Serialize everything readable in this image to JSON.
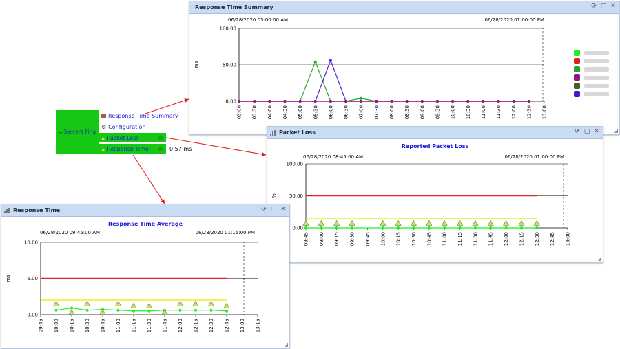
{
  "widget": {
    "label": "Servers Ping",
    "menu": [
      {
        "label": "Response Time Summary"
      },
      {
        "label": "Configuration"
      },
      {
        "label": "Packet Loss"
      },
      {
        "label": "Response Time"
      }
    ],
    "response_value": "0.57 ms"
  },
  "panels": {
    "summary": {
      "title": "Response Time Summary",
      "start": "06/28/2020 03:00:00 AM",
      "end": "06/28/2020 01:00:00 PM",
      "ylabel": "ms"
    },
    "packet": {
      "title": "Packet Loss",
      "chart_title": "Reported Packet Loss",
      "start": "06/28/2020 08:45:00 AM",
      "end": "06/28/2020 01:00:00 PM",
      "ylabel": "%"
    },
    "response": {
      "title": "Response Time",
      "chart_title": "Response Time Average",
      "start": "06/28/2020 09:45:00 AM",
      "end": "06/28/2020 01:15:00 PM",
      "ylabel": "ms"
    }
  },
  "colors": {
    "titlebar": "#c9dcf4",
    "green_widget": "#14c814",
    "link": "#1a1adc",
    "arrow": "#e01818"
  },
  "chart_data": [
    {
      "type": "line",
      "title": "",
      "xlabel": "",
      "ylabel": "ms",
      "ylim": [
        0,
        100
      ],
      "yticks": [
        "0.00",
        "50.00",
        "100.00"
      ],
      "categories": [
        "03:00",
        "03:30",
        "04:00",
        "04:30",
        "05:00",
        "05:30",
        "06:00",
        "06:30",
        "07:00",
        "07:30",
        "08:00",
        "08:30",
        "09:00",
        "09:30",
        "10:00",
        "10:30",
        "11:00",
        "11:30",
        "12:00",
        "12:30",
        "13:00"
      ],
      "legend_colors": [
        "#22ee22",
        "#dd2222",
        "#22aa22",
        "#8a1a8a",
        "#3a6a1a",
        "#4a1ac8"
      ],
      "series": [
        {
          "color": "#22aa22",
          "values": [
            0,
            0,
            0,
            0,
            0,
            54,
            0,
            0,
            4,
            0,
            0,
            0,
            0,
            0,
            0,
            0,
            0,
            0,
            0,
            0,
            null
          ]
        },
        {
          "color": "#5a1ac8",
          "values": [
            0,
            0,
            0,
            0,
            0,
            0,
            56,
            0,
            0,
            0,
            0,
            0,
            0,
            0,
            0,
            0,
            0,
            0,
            0,
            0,
            null
          ]
        },
        {
          "color": "#dd2222",
          "values": [
            0,
            0,
            0,
            0,
            0,
            0,
            0,
            0,
            0,
            0,
            0,
            0,
            0,
            0,
            0,
            0,
            0,
            0,
            0,
            0,
            null
          ]
        },
        {
          "color": "#8a1a8a",
          "values": [
            0,
            0,
            0,
            0,
            0,
            0,
            0,
            0,
            0,
            0,
            0,
            0,
            0,
            0,
            0,
            0,
            0,
            0,
            0,
            0,
            null
          ]
        }
      ]
    },
    {
      "type": "line",
      "title": "Reported Packet Loss",
      "xlabel": "",
      "ylabel": "%",
      "ylim": [
        0,
        100
      ],
      "yticks": [
        "0.00",
        "50.00",
        "100.00"
      ],
      "categories": [
        "08:45",
        "09:00",
        "09:15",
        "09:30",
        "09:45",
        "10:00",
        "10:15",
        "10:30",
        "10:45",
        "11:00",
        "11:15",
        "11:30",
        "11:45",
        "12:00",
        "12:15",
        "12:30",
        "12:45",
        "13:00"
      ],
      "thresholds": [
        {
          "color": "#dd2222",
          "value": 50
        },
        {
          "color": "#eeee22",
          "value": 15
        }
      ],
      "series": [
        {
          "color": "#22ee22",
          "values": [
            0,
            0,
            0,
            0,
            null,
            0,
            0,
            0,
            0,
            0,
            0,
            0,
            0,
            0,
            0,
            0,
            null,
            null
          ]
        }
      ],
      "markers": {
        "value": 7,
        "indices": [
          0,
          1,
          2,
          3,
          5,
          6,
          7,
          8,
          9,
          10,
          11,
          12,
          13,
          14,
          15
        ]
      }
    },
    {
      "type": "line",
      "title": "Response Time Average",
      "xlabel": "",
      "ylabel": "ms",
      "ylim": [
        0,
        10
      ],
      "yticks": [
        "0.00",
        "5.00",
        "10.00"
      ],
      "categories": [
        "09:45",
        "10:00",
        "10:15",
        "10:30",
        "10:45",
        "11:00",
        "11:15",
        "11:30",
        "11:45",
        "12:00",
        "12:15",
        "12:30",
        "12:45",
        "13:00",
        "13:15"
      ],
      "thresholds": [
        {
          "color": "#dd2222",
          "value": 5
        },
        {
          "color": "#eeee22",
          "value": 2
        }
      ],
      "series": [
        {
          "color": "#22ee22",
          "values": [
            null,
            0.6,
            0.9,
            0.6,
            0.7,
            0.6,
            0.5,
            0.5,
            0.6,
            0.6,
            0.6,
            0.6,
            0.5,
            null,
            null
          ]
        }
      ],
      "markers": {
        "indices": [
          1,
          2,
          3,
          4,
          5,
          6,
          7,
          8,
          9,
          10,
          11,
          12
        ],
        "values": [
          1.5,
          0.3,
          1.5,
          0.3,
          1.5,
          1.2,
          1.2,
          0.3,
          1.5,
          1.5,
          1.5,
          1.2
        ]
      }
    }
  ]
}
